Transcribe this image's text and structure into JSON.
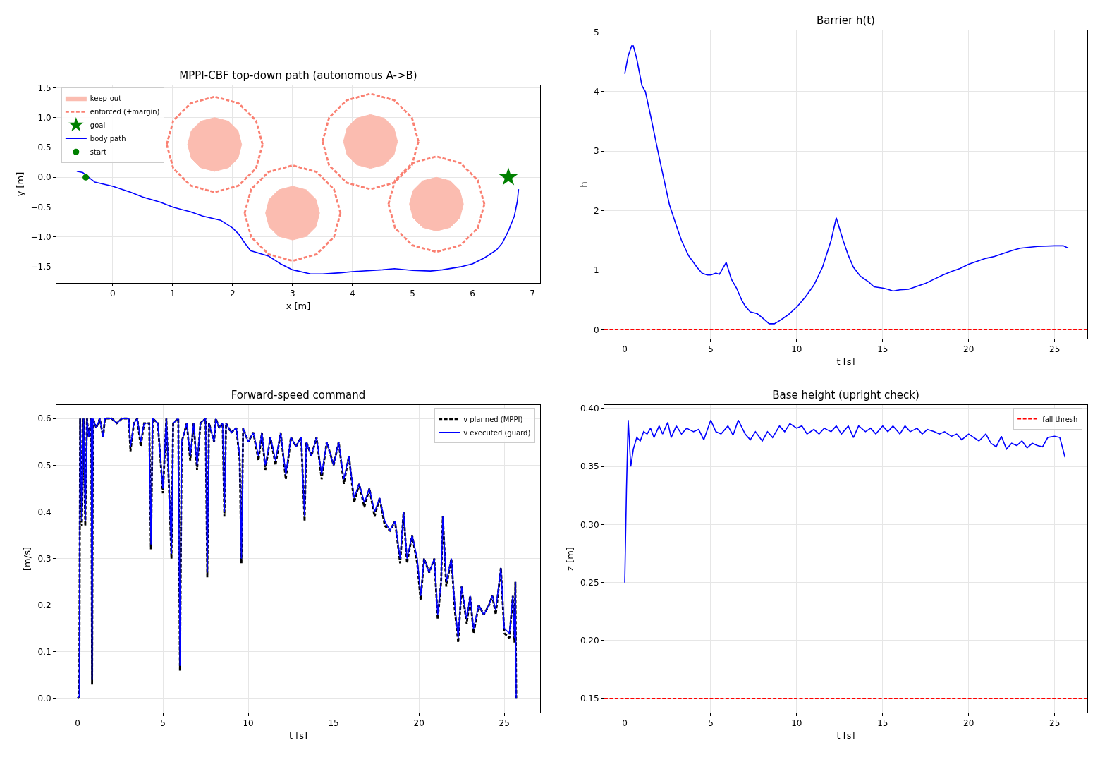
{
  "chart_data": [
    {
      "type": "line",
      "title": "MPPI-CBF top-down path (autonomous A->B)",
      "xlabel": "x [m]",
      "ylabel": "y [m]",
      "xlim": [
        -0.94,
        7.13
      ],
      "xticks": [
        0,
        1,
        2,
        3,
        4,
        5,
        6,
        7
      ],
      "ylim": [
        -1.77,
        1.54
      ],
      "yticks": [
        {
          "value": -1.5,
          "label": "−1.5"
        },
        {
          "value": -1,
          "label": "−1.0"
        },
        {
          "value": -0.5,
          "label": "−0.5"
        },
        {
          "value": 0,
          "label": "0.0"
        },
        0.5,
        {
          "value": 1,
          "label": "1.0"
        },
        1.5
      ],
      "grid": true,
      "legend": "top left",
      "series": [
        {
          "name": "keep-out",
          "type": "area",
          "color": "#fbbcb0",
          "x": [
            2.15,
            2.09,
            1.93,
            1.7,
            1.47,
            1.31,
            1.25,
            1.31,
            1.47,
            1.7,
            1.93,
            2.09,
            2.15,
            null,
            3.45,
            3.39,
            3.23,
            3.0,
            2.77,
            2.61,
            2.55,
            2.61,
            2.77,
            3.0,
            3.23,
            3.39,
            3.45,
            null,
            4.75,
            4.69,
            4.53,
            4.3,
            4.07,
            3.91,
            3.85,
            3.91,
            4.07,
            4.3,
            4.53,
            4.69,
            4.75,
            null,
            5.85,
            5.79,
            5.63,
            5.4,
            5.17,
            5.01,
            4.95,
            5.01,
            5.17,
            5.4,
            5.63,
            5.79,
            5.85
          ],
          "values": [
            0.55,
            0.78,
            0.94,
            1.0,
            0.94,
            0.78,
            0.55,
            0.32,
            0.16,
            0.1,
            0.16,
            0.32,
            0.55,
            null,
            -0.6,
            -0.37,
            -0.21,
            -0.15,
            -0.21,
            -0.37,
            -0.6,
            -0.83,
            -0.99,
            -1.05,
            -0.99,
            -0.83,
            -0.6,
            null,
            0.6,
            0.83,
            0.99,
            1.05,
            0.99,
            0.83,
            0.6,
            0.37,
            0.21,
            0.15,
            0.21,
            0.37,
            0.6,
            null,
            -0.45,
            -0.22,
            -0.06,
            0.0,
            -0.06,
            -0.22,
            -0.45,
            -0.68,
            -0.84,
            -0.9,
            -0.84,
            -0.68,
            -0.45
          ]
        },
        {
          "name": "enforced (+margin)",
          "type": "line",
          "line_style": "dashed",
          "color": "#fa8072",
          "x": [
            0.9,
            1.01,
            1.3,
            1.7,
            2.1,
            2.39,
            2.5
          ],
          "values": [
            0.55,
            0.95,
            1.24,
            1.35,
            1.24,
            0.95,
            0.55
          ]
        },
        {
          "type": "line",
          "line_style": "dashed",
          "color": "#fa8072",
          "x": [
            0.9,
            1.01,
            1.3,
            1.7,
            2.1,
            2.39,
            2.5
          ],
          "values": [
            0.55,
            0.15,
            -0.14,
            -0.25,
            -0.14,
            0.15,
            0.55
          ]
        },
        {
          "type": "line",
          "line_style": "dashed",
          "color": "#fa8072",
          "x": [
            2.2,
            2.31,
            2.6,
            3.0,
            3.4,
            3.69,
            3.8
          ],
          "values": [
            -0.6,
            -0.2,
            0.09,
            0.2,
            0.09,
            -0.2,
            -0.6
          ]
        },
        {
          "type": "line",
          "line_style": "dashed",
          "color": "#fa8072",
          "x": [
            2.2,
            2.31,
            2.6,
            3.0,
            3.4,
            3.69,
            3.8
          ],
          "values": [
            -0.6,
            -1.0,
            -1.29,
            -1.4,
            -1.29,
            -1.0,
            -0.6
          ]
        },
        {
          "type": "line",
          "line_style": "dashed",
          "color": "#fa8072",
          "x": [
            3.5,
            3.61,
            3.9,
            4.3,
            4.7,
            4.99,
            5.1
          ],
          "values": [
            0.6,
            1.0,
            1.29,
            1.4,
            1.29,
            1.0,
            0.6
          ]
        },
        {
          "type": "line",
          "line_style": "dashed",
          "color": "#fa8072",
          "x": [
            3.5,
            3.61,
            3.9,
            4.3,
            4.7,
            4.99,
            5.1
          ],
          "values": [
            0.6,
            0.2,
            -0.09,
            -0.2,
            -0.09,
            0.2,
            0.6
          ]
        },
        {
          "type": "line",
          "line_style": "dashed",
          "color": "#fa8072",
          "x": [
            4.6,
            4.71,
            5.0,
            5.4,
            5.8,
            6.09,
            6.2
          ],
          "values": [
            -0.45,
            -0.05,
            0.24,
            0.35,
            0.24,
            -0.05,
            -0.45
          ]
        },
        {
          "type": "line",
          "line_style": "dashed",
          "color": "#fa8072",
          "x": [
            4.6,
            4.71,
            5.0,
            5.4,
            5.8,
            6.09,
            6.2
          ],
          "values": [
            -0.45,
            -0.85,
            -1.14,
            -1.25,
            -1.14,
            -0.85,
            -0.45
          ]
        },
        {
          "name": "goal",
          "type": "scatter",
          "marker": "star",
          "color": "#008000",
          "x": [
            6.6
          ],
          "values": [
            0.0
          ]
        },
        {
          "name": "body path",
          "type": "line",
          "color": "#0000ff",
          "x": [
            -0.6,
            -0.5,
            -0.4,
            -0.3,
            0,
            0.3,
            0.5,
            0.8,
            1.0,
            1.3,
            1.5,
            1.8,
            2.0,
            2.1,
            2.2,
            2.3,
            2.6,
            2.8,
            3.0,
            3.3,
            3.5,
            3.8,
            4.0,
            4.5,
            4.7,
            5.0,
            5.3,
            5.5,
            5.8,
            6.0,
            6.2,
            6.4,
            6.5,
            6.6,
            6.7,
            6.75,
            6.77
          ],
          "values": [
            0.1,
            0.08,
            0.0,
            -0.08,
            -0.15,
            -0.25,
            -0.33,
            -0.42,
            -0.5,
            -0.58,
            -0.65,
            -0.72,
            -0.85,
            -0.95,
            -1.1,
            -1.23,
            -1.32,
            -1.45,
            -1.55,
            -1.62,
            -1.62,
            -1.6,
            -1.58,
            -1.55,
            -1.53,
            -1.56,
            -1.57,
            -1.55,
            -1.5,
            -1.45,
            -1.35,
            -1.22,
            -1.1,
            -0.9,
            -0.65,
            -0.4,
            -0.2
          ]
        },
        {
          "name": "start",
          "type": "scatter",
          "marker": "circle",
          "color": "#008000",
          "x": [
            -0.45
          ],
          "values": [
            0.0
          ]
        }
      ]
    },
    {
      "type": "line",
      "title": "Barrier h(t)",
      "xlabel": "t [s]",
      "ylabel": "h",
      "xlim": [
        -1.19,
        26.9
      ],
      "xticks": [
        0,
        5,
        10,
        15,
        20,
        25
      ],
      "ylim": [
        -0.15,
        5.03
      ],
      "yticks": [
        0,
        1,
        2,
        3,
        4,
        5
      ],
      "grid": true,
      "ref_lines": [
        {
          "axis": "y",
          "value": 0,
          "color": "#ff0000",
          "line_style": "dashed"
        }
      ],
      "series": [
        {
          "color": "#0000ff",
          "x": [
            0,
            0.2,
            0.4,
            0.5,
            0.7,
            1.0,
            1.2,
            1.5,
            2.0,
            2.3,
            2.6,
            3.0,
            3.3,
            3.7,
            4.2,
            4.5,
            4.8,
            5.0,
            5.3,
            5.5,
            5.9,
            6.2,
            6.5,
            6.8,
            7.0,
            7.3,
            7.7,
            8.0,
            8.4,
            8.7,
            9.0,
            9.5,
            10.0,
            10.5,
            11.0,
            11.5,
            12.0,
            12.3,
            12.7,
            13.0,
            13.3,
            13.7,
            14.2,
            14.5,
            15.0,
            15.3,
            15.6,
            16.0,
            16.5,
            17.0,
            17.5,
            18.0,
            18.5,
            19.0,
            19.5,
            20.0,
            20.5,
            21.0,
            21.5,
            22.0,
            22.5,
            23.0,
            24.0,
            25.0,
            25.5,
            25.8
          ],
          "values": [
            4.3,
            4.6,
            4.77,
            4.77,
            4.55,
            4.1,
            4.0,
            3.6,
            2.9,
            2.5,
            2.1,
            1.75,
            1.5,
            1.25,
            1.05,
            0.95,
            0.92,
            0.92,
            0.95,
            0.93,
            1.13,
            0.85,
            0.7,
            0.5,
            0.4,
            0.3,
            0.27,
            0.2,
            0.1,
            0.1,
            0.15,
            0.25,
            0.38,
            0.55,
            0.75,
            1.05,
            1.5,
            1.88,
            1.5,
            1.25,
            1.05,
            0.9,
            0.8,
            0.72,
            0.7,
            0.68,
            0.65,
            0.67,
            0.68,
            0.73,
            0.78,
            0.85,
            0.92,
            0.98,
            1.03,
            1.1,
            1.15,
            1.2,
            1.23,
            1.28,
            1.33,
            1.37,
            1.4,
            1.41,
            1.41,
            1.37
          ]
        }
      ]
    },
    {
      "type": "line",
      "title": "Forward-speed command",
      "xlabel": "t [s]",
      "ylabel": "[m/s]",
      "xlim": [
        -1.24,
        27.1
      ],
      "xticks": [
        0,
        5,
        10,
        15,
        20,
        25
      ],
      "ylim": [
        -0.03,
        0.629
      ],
      "yticks": [
        {
          "value": 0,
          "label": "0.0"
        },
        0.1,
        0.2,
        0.3,
        0.4,
        0.5,
        0.6
      ],
      "grid": true,
      "legend": "top right",
      "x": [
        0,
        0.1,
        0.15,
        0.25,
        0.35,
        0.45,
        0.55,
        0.65,
        0.8,
        0.85,
        0.9,
        1.1,
        1.3,
        1.5,
        1.6,
        2.0,
        2.3,
        2.6,
        3.0,
        3.1,
        3.3,
        3.5,
        3.7,
        3.9,
        4.2,
        4.3,
        4.4,
        4.7,
        5.0,
        5.2,
        5.4,
        5.5,
        5.6,
        5.9,
        6.0,
        6.1,
        6.4,
        6.6,
        6.8,
        7.0,
        7.2,
        7.5,
        7.6,
        7.7,
        8.0,
        8.1,
        8.3,
        8.5,
        8.6,
        8.7,
        9.0,
        9.3,
        9.5,
        9.6,
        9.7,
        10.0,
        10.3,
        10.6,
        10.8,
        11.0,
        11.3,
        11.6,
        11.9,
        12.2,
        12.5,
        12.8,
        13.1,
        13.3,
        13.4,
        13.7,
        14.0,
        14.3,
        14.6,
        15.0,
        15.3,
        15.6,
        15.9,
        16.2,
        16.5,
        16.8,
        17.1,
        17.4,
        17.7,
        18.0,
        18.3,
        18.6,
        18.9,
        19.1,
        19.3,
        19.6,
        19.9,
        20.1,
        20.3,
        20.6,
        20.9,
        21.1,
        21.3,
        21.4,
        21.6,
        21.9,
        22.1,
        22.3,
        22.5,
        22.8,
        23.0,
        23.2,
        23.5,
        23.8,
        24.1,
        24.3,
        24.5,
        24.8,
        25.0,
        25.3,
        25.5,
        25.6,
        25.65,
        25.7
      ],
      "series": [
        {
          "name": "v planned (MPPI)",
          "color": "#000000",
          "line_style": "dashed",
          "values": [
            0.0,
            0.005,
            0.6,
            0.37,
            0.6,
            0.37,
            0.6,
            0.56,
            0.6,
            0.03,
            0.6,
            0.58,
            0.6,
            0.56,
            0.6,
            0.6,
            0.59,
            0.6,
            0.6,
            0.53,
            0.59,
            0.6,
            0.54,
            0.59,
            0.59,
            0.32,
            0.6,
            0.59,
            0.44,
            0.6,
            0.41,
            0.3,
            0.59,
            0.6,
            0.06,
            0.55,
            0.59,
            0.51,
            0.59,
            0.49,
            0.59,
            0.6,
            0.26,
            0.59,
            0.55,
            0.6,
            0.58,
            0.59,
            0.39,
            0.59,
            0.57,
            0.58,
            0.51,
            0.29,
            0.58,
            0.55,
            0.57,
            0.51,
            0.57,
            0.49,
            0.56,
            0.5,
            0.57,
            0.47,
            0.56,
            0.54,
            0.56,
            0.38,
            0.55,
            0.52,
            0.56,
            0.47,
            0.55,
            0.5,
            0.55,
            0.46,
            0.52,
            0.42,
            0.46,
            0.41,
            0.45,
            0.39,
            0.43,
            0.37,
            0.36,
            0.38,
            0.29,
            0.4,
            0.29,
            0.35,
            0.29,
            0.21,
            0.3,
            0.27,
            0.3,
            0.17,
            0.25,
            0.39,
            0.24,
            0.3,
            0.19,
            0.12,
            0.24,
            0.16,
            0.22,
            0.14,
            0.2,
            0.18,
            0.2,
            0.22,
            0.18,
            0.28,
            0.14,
            0.13,
            0.22,
            0.12,
            0.25,
            0.0
          ]
        },
        {
          "name": "v executed (guard)",
          "color": "#0000ff",
          "values": [
            0.0,
            0.005,
            0.6,
            0.38,
            0.6,
            0.38,
            0.6,
            0.56,
            0.6,
            0.04,
            0.6,
            0.58,
            0.6,
            0.56,
            0.6,
            0.6,
            0.59,
            0.6,
            0.6,
            0.54,
            0.59,
            0.6,
            0.55,
            0.59,
            0.59,
            0.33,
            0.6,
            0.59,
            0.45,
            0.6,
            0.42,
            0.31,
            0.59,
            0.6,
            0.07,
            0.55,
            0.59,
            0.52,
            0.59,
            0.5,
            0.59,
            0.6,
            0.27,
            0.59,
            0.55,
            0.6,
            0.58,
            0.59,
            0.4,
            0.59,
            0.57,
            0.58,
            0.52,
            0.3,
            0.58,
            0.55,
            0.57,
            0.52,
            0.57,
            0.5,
            0.56,
            0.51,
            0.57,
            0.48,
            0.56,
            0.54,
            0.56,
            0.39,
            0.55,
            0.52,
            0.56,
            0.48,
            0.55,
            0.5,
            0.55,
            0.47,
            0.52,
            0.43,
            0.46,
            0.42,
            0.45,
            0.4,
            0.43,
            0.38,
            0.36,
            0.38,
            0.3,
            0.4,
            0.3,
            0.35,
            0.3,
            0.22,
            0.3,
            0.27,
            0.3,
            0.18,
            0.25,
            0.39,
            0.25,
            0.3,
            0.2,
            0.13,
            0.24,
            0.17,
            0.22,
            0.15,
            0.2,
            0.18,
            0.2,
            0.22,
            0.19,
            0.28,
            0.15,
            0.14,
            0.22,
            0.13,
            0.25,
            0.0
          ]
        }
      ]
    },
    {
      "type": "line",
      "title": "Base height (upright check)",
      "xlabel": "t [s]",
      "ylabel": "z [m]",
      "xlim": [
        -1.19,
        26.9
      ],
      "xticks": [
        0,
        5,
        10,
        15,
        20,
        25
      ],
      "ylim": [
        0.138,
        0.403
      ],
      "yticks": [
        0.15,
        {
          "value": 0.2,
          "label": "0.20"
        },
        0.25,
        {
          "value": 0.3,
          "label": "0.30"
        },
        0.35,
        {
          "value": 0.4,
          "label": "0.40"
        }
      ],
      "grid": true,
      "legend": "top right",
      "ref_lines": [
        {
          "axis": "y",
          "value": 0.15,
          "label": "fall thresh",
          "color": "#ff0000",
          "line_style": "dashed"
        }
      ],
      "series": [
        {
          "color": "#0000ff",
          "x": [
            0,
            0.1,
            0.2,
            0.35,
            0.5,
            0.7,
            0.9,
            1.1,
            1.3,
            1.5,
            1.7,
            2.0,
            2.2,
            2.5,
            2.7,
            3.0,
            3.3,
            3.6,
            4.0,
            4.3,
            4.6,
            5.0,
            5.3,
            5.6,
            6.0,
            6.3,
            6.6,
            7.0,
            7.3,
            7.6,
            8.0,
            8.3,
            8.6,
            9.0,
            9.3,
            9.6,
            10.0,
            10.3,
            10.6,
            11.0,
            11.3,
            11.6,
            12.0,
            12.3,
            12.6,
            13.0,
            13.3,
            13.6,
            14.0,
            14.3,
            14.6,
            15.0,
            15.3,
            15.6,
            16.0,
            16.3,
            16.6,
            17.0,
            17.3,
            17.6,
            18.0,
            18.3,
            18.6,
            19.0,
            19.3,
            19.6,
            20.0,
            20.3,
            20.6,
            21.0,
            21.3,
            21.6,
            21.9,
            22.2,
            22.5,
            22.8,
            23.1,
            23.4,
            23.7,
            24.0,
            24.3,
            24.6,
            25.0,
            25.3,
            25.6
          ],
          "values": [
            0.25,
            0.33,
            0.39,
            0.35,
            0.365,
            0.375,
            0.372,
            0.38,
            0.378,
            0.383,
            0.375,
            0.385,
            0.378,
            0.388,
            0.375,
            0.385,
            0.378,
            0.383,
            0.38,
            0.382,
            0.373,
            0.39,
            0.38,
            0.378,
            0.385,
            0.377,
            0.39,
            0.378,
            0.373,
            0.38,
            0.372,
            0.38,
            0.375,
            0.385,
            0.38,
            0.387,
            0.383,
            0.385,
            0.378,
            0.382,
            0.378,
            0.383,
            0.38,
            0.385,
            0.378,
            0.385,
            0.375,
            0.385,
            0.38,
            0.383,
            0.378,
            0.385,
            0.38,
            0.385,
            0.378,
            0.385,
            0.38,
            0.383,
            0.378,
            0.382,
            0.38,
            0.378,
            0.38,
            0.376,
            0.378,
            0.373,
            0.378,
            0.375,
            0.372,
            0.378,
            0.37,
            0.367,
            0.376,
            0.365,
            0.37,
            0.368,
            0.372,
            0.366,
            0.37,
            0.368,
            0.367,
            0.375,
            0.376,
            0.375,
            0.358
          ]
        }
      ]
    }
  ]
}
